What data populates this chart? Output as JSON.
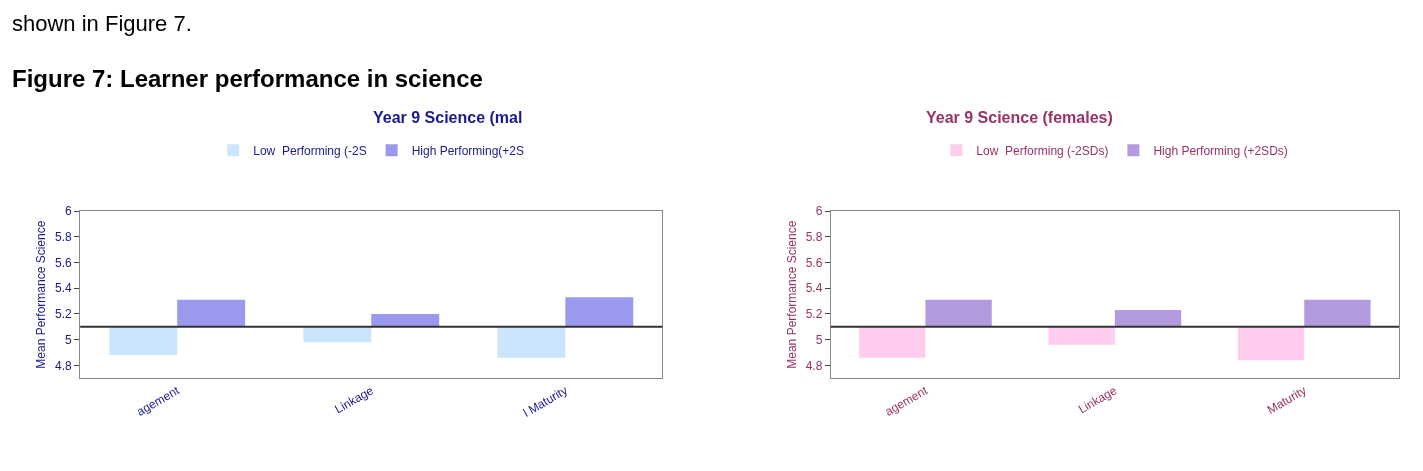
{
  "chart_data": [
    {
      "type": "bar",
      "title": "Year 9 Science (mal",
      "ylabel": "Mean Performance Science",
      "annotations": [
        "shown in Figure 7.",
        "Figure 7: Learner performance in science"
      ],
      "categories": [
        "agement",
        "Linkage",
        "l Maturity"
      ],
      "series": [
        {
          "name": "Low  Performing (-2S",
          "color": "#cce5ff",
          "values": [
            -0.22,
            -0.12,
            -0.24
          ],
          "base": [
            5.1,
            5.1,
            5.1
          ]
        },
        {
          "name": "High Performing(+2S",
          "color": "#9999ee",
          "values": [
            0.21,
            0.1,
            0.23
          ],
          "base": [
            5.1,
            5.1,
            5.1
          ]
        }
      ],
      "ylim": [
        4.7,
        6
      ],
      "yticks": [
        4.8,
        5,
        5.2,
        5.4,
        5.6,
        5.8,
        6
      ],
      "ref_lines": [
        {
          "axis": "y",
          "value": 5.1,
          "color": "#333333"
        }
      ],
      "legend": "top"
    },
    {
      "type": "bar",
      "title": "Year 9 Science (females)",
      "ylabel": "Mean Performance Science",
      "categories": [
        "agement",
        "Linkage",
        "Maturity"
      ],
      "series": [
        {
          "name": "Low  Performing (-2SDs)",
          "color": "#ffccee",
          "values": [
            -0.24,
            -0.14,
            -0.26
          ],
          "base": [
            5.1,
            5.1,
            5.1
          ]
        },
        {
          "name": "High Performing (+2SDs)",
          "color": "#b399dd",
          "values": [
            0.21,
            0.13,
            0.21
          ],
          "base": [
            5.1,
            5.1,
            5.1
          ]
        }
      ],
      "ylim": [
        4.7,
        6
      ],
      "yticks": [
        4.8,
        5,
        5.2,
        5.4,
        5.6,
        5.8,
        6
      ],
      "ref_lines": [
        {
          "axis": "y",
          "value": 5.1,
          "color": "#333333"
        }
      ],
      "legend": "top"
    }
  ]
}
